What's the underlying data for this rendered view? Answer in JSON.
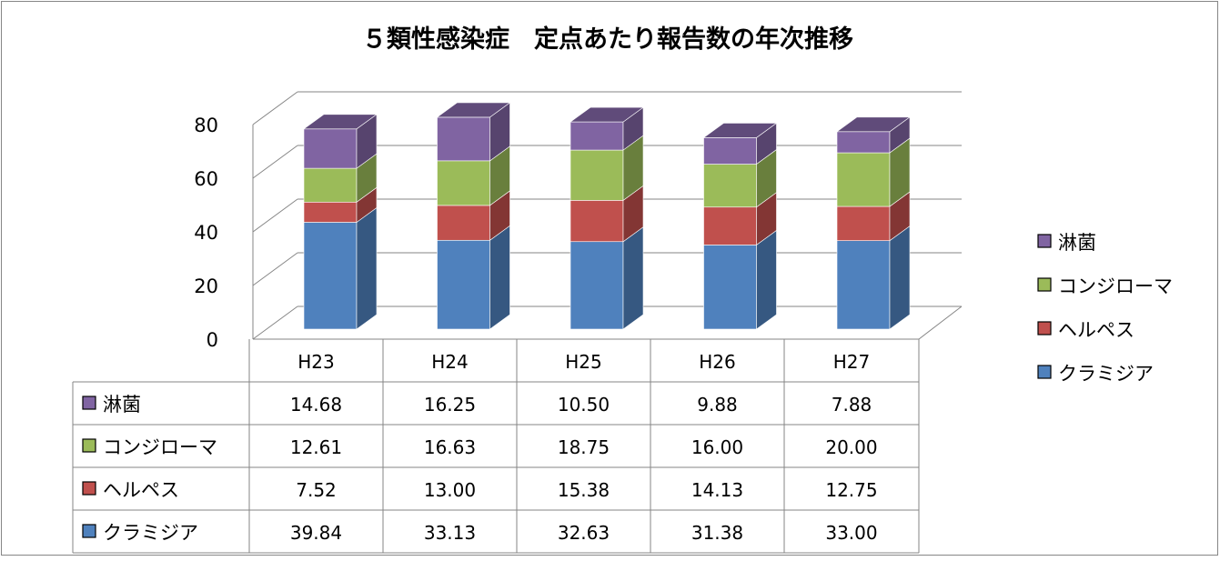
{
  "chart_data": {
    "type": "bar",
    "stacked": true,
    "three_d": true,
    "title": "５類性感染症　定点あたり報告数の年次推移",
    "xlabel": "",
    "ylabel": "",
    "ylim": [
      0,
      80
    ],
    "yticks": [
      0,
      20,
      40,
      60,
      80
    ],
    "grid": true,
    "legend_position": "right",
    "categories": [
      "H23",
      "H24",
      "H25",
      "H26",
      "H27"
    ],
    "series": [
      {
        "name": "クラミジア",
        "values": [
          39.84,
          33.13,
          32.63,
          31.38,
          33.0
        ],
        "labels": [
          "39.84",
          "33.13",
          "32.63",
          "31.38",
          "33.00"
        ],
        "color": "#4F81BD"
      },
      {
        "name": "ヘルペス",
        "values": [
          7.52,
          13.0,
          15.38,
          14.13,
          12.75
        ],
        "labels": [
          "7.52",
          "13.00",
          "15.38",
          "14.13",
          "12.75"
        ],
        "color": "#C0504D"
      },
      {
        "name": "コンジローマ",
        "values": [
          12.61,
          16.63,
          18.75,
          16.0,
          20.0
        ],
        "labels": [
          "12.61",
          "16.63",
          "18.75",
          "16.00",
          "20.00"
        ],
        "color": "#9BBB59"
      },
      {
        "name": "淋菌",
        "values": [
          14.68,
          16.25,
          10.5,
          9.88,
          7.88
        ],
        "labels": [
          "14.68",
          "16.25",
          "10.50",
          "9.88",
          "7.88"
        ],
        "color": "#8064A2"
      }
    ],
    "data_table": true
  }
}
